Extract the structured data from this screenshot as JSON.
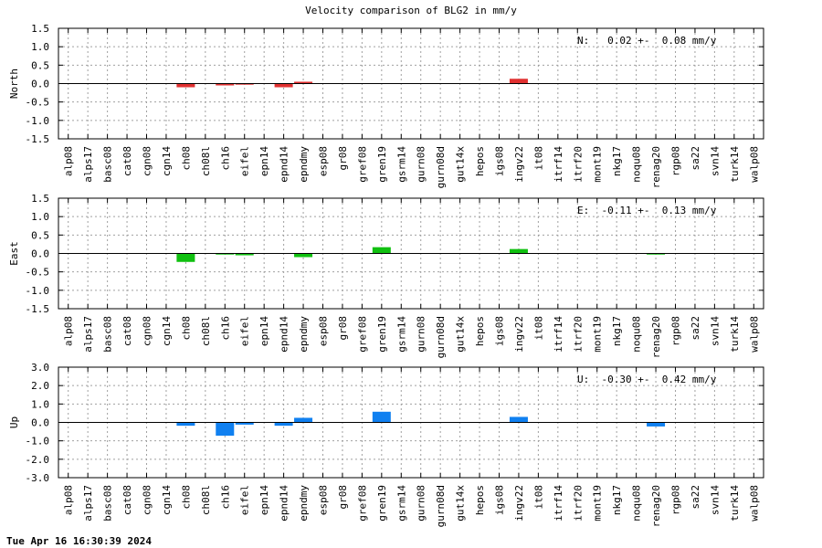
{
  "title": "Velocity comparison of BLG2 in mm/y",
  "timestamp": "Tue Apr 16 16:30:39 2024",
  "colors": {
    "north": "#e03030",
    "east": "#10c010",
    "up": "#1080f0"
  },
  "chart_data": [
    {
      "type": "bar",
      "ylabel": "North",
      "ylim": [
        -1.5,
        1.5
      ],
      "yticks": [
        "1.5",
        "1.0",
        "0.5",
        "0.0",
        "-0.5",
        "-1.0",
        "-1.5"
      ],
      "annotation": "N:   0.02 +-  0.08 mm/y",
      "grid": true,
      "categories": [
        "alp08",
        "alps17",
        "basc08",
        "cat08",
        "cgn08",
        "cgn14",
        "ch08",
        "ch08l",
        "ch16",
        "eifel",
        "epn14",
        "epnd14",
        "epndmy",
        "esp08",
        "gr08",
        "gref08",
        "gren19",
        "gsrm14",
        "gurn08",
        "gurn08d",
        "gut14x",
        "hepos",
        "igs08",
        "ingv22",
        "it08",
        "itrf14",
        "itrf20",
        "mont19",
        "nkg17",
        "noqu08",
        "renag20",
        "rgp08",
        "sa22",
        "svn14",
        "turk14",
        "walp08"
      ],
      "values": [
        0,
        0,
        0,
        0,
        0,
        0,
        -0.1,
        0,
        -0.05,
        -0.03,
        0,
        -0.1,
        0.05,
        0,
        0,
        0,
        0,
        0,
        0,
        0,
        0,
        0,
        0,
        0.13,
        0,
        0,
        0,
        0,
        0,
        0,
        0,
        0,
        0,
        0,
        0,
        0
      ]
    },
    {
      "type": "bar",
      "ylabel": "East",
      "ylim": [
        -1.5,
        1.5
      ],
      "yticks": [
        "1.5",
        "1.0",
        "0.5",
        "0.0",
        "-0.5",
        "-1.0",
        "-1.5"
      ],
      "annotation": "E:  -0.11 +-  0.13 mm/y",
      "grid": true,
      "categories": [
        "alp08",
        "alps17",
        "basc08",
        "cat08",
        "cgn08",
        "cgn14",
        "ch08",
        "ch08l",
        "ch16",
        "eifel",
        "epn14",
        "epnd14",
        "epndmy",
        "esp08",
        "gr08",
        "gref08",
        "gren19",
        "gsrm14",
        "gurn08",
        "gurn08d",
        "gut14x",
        "hepos",
        "igs08",
        "ingv22",
        "it08",
        "itrf14",
        "itrf20",
        "mont19",
        "nkg17",
        "noqu08",
        "renag20",
        "rgp08",
        "sa22",
        "svn14",
        "turk14",
        "walp08"
      ],
      "values": [
        0,
        0,
        0,
        0,
        0,
        0,
        -0.23,
        0,
        -0.03,
        -0.05,
        0,
        0,
        -0.1,
        0,
        0,
        0,
        0.17,
        0,
        0,
        0,
        0,
        0,
        0,
        0.12,
        0,
        0,
        0,
        0,
        0,
        0,
        -0.03,
        0,
        0,
        0,
        0,
        0
      ]
    },
    {
      "type": "bar",
      "ylabel": "Up",
      "ylim": [
        -3.0,
        3.0
      ],
      "yticks": [
        "3.0",
        "2.0",
        "1.0",
        "0.0",
        "-1.0",
        "-2.0",
        "-3.0"
      ],
      "annotation": "U:  -0.30 +-  0.42 mm/y",
      "grid": true,
      "categories": [
        "alp08",
        "alps17",
        "basc08",
        "cat08",
        "cgn08",
        "cgn14",
        "ch08",
        "ch08l",
        "ch16",
        "eifel",
        "epn14",
        "epnd14",
        "epndmy",
        "esp08",
        "gr08",
        "gref08",
        "gren19",
        "gsrm14",
        "gurn08",
        "gurn08d",
        "gut14x",
        "hepos",
        "igs08",
        "ingv22",
        "it08",
        "itrf14",
        "itrf20",
        "mont19",
        "nkg17",
        "noqu08",
        "renag20",
        "rgp08",
        "sa22",
        "svn14",
        "turk14",
        "walp08"
      ],
      "values": [
        0,
        0,
        0,
        0,
        0,
        0,
        -0.18,
        0,
        -0.72,
        -0.12,
        0,
        -0.18,
        0.25,
        0,
        0,
        0,
        0.58,
        0,
        0,
        0,
        0,
        0,
        0,
        0.3,
        0,
        0,
        0,
        0,
        0,
        0,
        -0.22,
        0,
        0,
        0,
        0,
        0
      ]
    }
  ]
}
